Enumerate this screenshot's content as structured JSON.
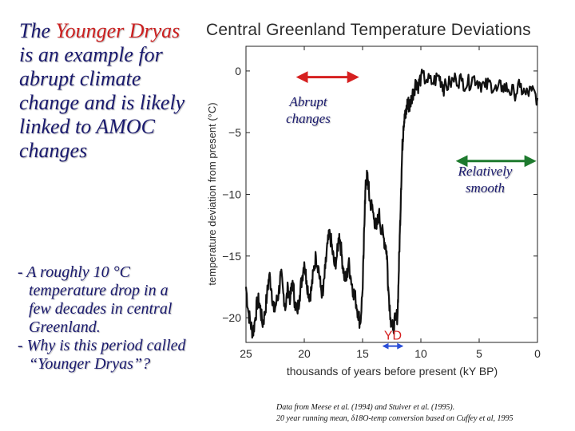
{
  "left_title": {
    "part1": "The ",
    "highlight": "Younger Dryas",
    "part2": " is an example for abrupt climate change and is likely linked to AMOC changes"
  },
  "bullets": [
    "- A roughly 10 °C temperature drop in a few decades in central Greenland.",
    "- Why is this period called “Younger Dryas”?"
  ],
  "annotations": {
    "abrupt": "Abrupt changes",
    "smooth": "Relatively smooth",
    "yd": "YD"
  },
  "credit": {
    "line1": "Data from Meese et al. (1994) and Stuiver et al. (1995).",
    "line2": "20 year running mean, δ18O-temp conversion based on Cuffey et al, 1995"
  },
  "colors": {
    "abrupt_arrow": "#d62020",
    "smooth_arrow": "#1e7a2e",
    "yd_label": "#d62020",
    "yd_marker": "#2b4fd8",
    "text": "#1a1a6e",
    "highlight": "#cc1f1f"
  },
  "chart_data": {
    "type": "line",
    "title": "Central Greenland Temperature Deviations",
    "xlabel": "thousands of years before present (kY BP)",
    "ylabel": "temperature deviation from present (°C)",
    "xlim": [
      25,
      0
    ],
    "ylim": [
      -22,
      2
    ],
    "xticks": [
      25,
      20,
      15,
      10,
      5,
      0
    ],
    "yticks": [
      0,
      -5,
      -10,
      -15,
      -20
    ],
    "series": [
      {
        "name": "temperature deviation",
        "x": [
          25.0,
          24.8,
          24.6,
          24.4,
          24.2,
          24.0,
          23.8,
          23.6,
          23.4,
          23.2,
          23.0,
          22.8,
          22.6,
          22.4,
          22.2,
          22.0,
          21.8,
          21.6,
          21.4,
          21.2,
          21.0,
          20.8,
          20.6,
          20.4,
          20.2,
          20.0,
          19.8,
          19.6,
          19.4,
          19.2,
          19.0,
          18.8,
          18.6,
          18.4,
          18.2,
          18.0,
          17.8,
          17.6,
          17.4,
          17.2,
          17.0,
          16.8,
          16.6,
          16.4,
          16.2,
          16.0,
          15.8,
          15.6,
          15.4,
          15.2,
          15.0,
          14.9,
          14.8,
          14.7,
          14.6,
          14.5,
          14.4,
          14.2,
          14.0,
          13.8,
          13.6,
          13.4,
          13.2,
          13.0,
          12.9,
          12.8,
          12.6,
          12.4,
          12.2,
          12.0,
          11.9,
          11.8,
          11.7,
          11.6,
          11.5,
          11.4,
          11.3,
          11.2,
          11.1,
          11.0,
          10.8,
          10.6,
          10.4,
          10.2,
          10.0,
          9.5,
          9.0,
          8.5,
          8.2,
          8.0,
          7.5,
          7.0,
          6.5,
          6.0,
          5.5,
          5.0,
          4.5,
          4.0,
          3.5,
          3.0,
          2.5,
          2.0,
          1.5,
          1.0,
          0.5,
          0.0
        ],
        "y": [
          -17.5,
          -19.5,
          -20.5,
          -21.3,
          -20.0,
          -18.5,
          -19.0,
          -20.5,
          -19.8,
          -18.2,
          -16.5,
          -17.8,
          -19.5,
          -18.8,
          -18.0,
          -16.5,
          -18.0,
          -19.2,
          -17.5,
          -18.5,
          -17.0,
          -18.8,
          -19.5,
          -18.2,
          -16.8,
          -15.5,
          -17.0,
          -18.2,
          -17.8,
          -16.2,
          -15.0,
          -15.8,
          -17.5,
          -18.2,
          -16.0,
          -14.0,
          -13.2,
          -14.5,
          -15.8,
          -15.0,
          -13.2,
          -14.8,
          -16.5,
          -17.0,
          -15.5,
          -16.8,
          -17.8,
          -18.5,
          -19.5,
          -20.5,
          -17.8,
          -14.5,
          -10.5,
          -9.0,
          -8.5,
          -9.2,
          -10.5,
          -11.0,
          -12.0,
          -12.8,
          -11.5,
          -12.8,
          -13.5,
          -14.2,
          -15.0,
          -17.5,
          -20.0,
          -21.0,
          -20.2,
          -19.8,
          -16.5,
          -13.0,
          -9.5,
          -6.5,
          -4.5,
          -3.5,
          -3.8,
          -2.8,
          -2.5,
          -3.0,
          -2.2,
          -1.5,
          -0.8,
          -1.2,
          -0.5,
          -0.7,
          -1.0,
          -0.4,
          -0.9,
          -1.4,
          -1.0,
          -0.6,
          -0.8,
          -1.1,
          -0.5,
          -0.9,
          -1.3,
          -1.0,
          -1.6,
          -1.2,
          -1.5,
          -1.8,
          -1.3,
          -1.9,
          -1.6,
          -2.2
        ]
      }
    ],
    "annotations": [
      {
        "label": "Abrupt changes",
        "x_range": [
          20.5,
          15.5
        ],
        "y": -0.5
      },
      {
        "label": "Relatively smooth",
        "x_range": [
          6.8,
          0.3
        ],
        "y": -7.3
      },
      {
        "label": "YD",
        "x_range": [
          13.2,
          11.6
        ],
        "y": -22.3
      }
    ]
  }
}
